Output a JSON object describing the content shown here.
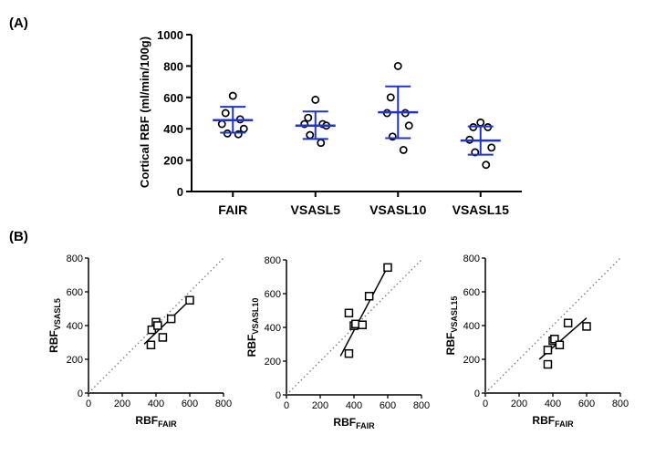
{
  "chart_data": [
    {
      "panel": "(A)",
      "type": "scatter",
      "ylabel": "Cortical RBF (ml/min/100g)",
      "ylim": [
        0,
        1000
      ],
      "yticks": [
        0,
        200,
        400,
        600,
        800,
        1000
      ],
      "categories": [
        "FAIR",
        "VSASL5",
        "VSASL10",
        "VSASL15"
      ],
      "groups": [
        {
          "name": "FAIR",
          "points": [
            610,
            500,
            460,
            430,
            400,
            370,
            365
          ],
          "mean": 455,
          "sd_low": 375,
          "sd_high": 540
        },
        {
          "name": "VSASL5",
          "points": [
            585,
            470,
            430,
            430,
            420,
            360,
            310
          ],
          "mean": 420,
          "sd_low": 335,
          "sd_high": 510
        },
        {
          "name": "VSASL10",
          "points": [
            800,
            600,
            500,
            500,
            420,
            350,
            265
          ],
          "mean": 505,
          "sd_low": 340,
          "sd_high": 670
        },
        {
          "name": "VSASL15",
          "points": [
            440,
            410,
            410,
            330,
            280,
            250,
            170
          ],
          "mean": 325,
          "sd_low": 235,
          "sd_high": 415
        }
      ],
      "colors": {
        "bar": "#1f35c8",
        "marker": "#000000"
      }
    },
    {
      "panel": "(B)",
      "type": "scatter",
      "xlabel": "RBF",
      "xlabel_sub": "FAIR",
      "ylabel": "RBF",
      "ylabel_sub": "VSASL5",
      "xlim": [
        0,
        800
      ],
      "ylim": [
        0,
        800
      ],
      "xticks": [
        0,
        200,
        400,
        600,
        800
      ],
      "yticks": [
        0,
        200,
        400,
        600,
        800
      ],
      "x": [
        370,
        375,
        400,
        410,
        440,
        490,
        600
      ],
      "y": [
        285,
        375,
        420,
        400,
        330,
        440,
        550
      ],
      "fit": {
        "x": [
          330,
          600
        ],
        "y": [
          290,
          550
        ]
      }
    },
    {
      "type": "scatter",
      "xlabel": "RBF",
      "xlabel_sub": "FAIR",
      "ylabel": "RBF",
      "ylabel_sub": "VSASL10",
      "xlim": [
        0,
        800
      ],
      "ylim": [
        0,
        800
      ],
      "xticks": [
        0,
        200,
        400,
        600,
        800
      ],
      "yticks": [
        0,
        200,
        400,
        600,
        800
      ],
      "x": [
        370,
        370,
        400,
        410,
        450,
        490,
        600
      ],
      "y": [
        245,
        485,
        410,
        420,
        415,
        585,
        755
      ],
      "fit": {
        "x": [
          320,
          600
        ],
        "y": [
          230,
          760
        ]
      }
    },
    {
      "type": "scatter",
      "xlabel": "RBF",
      "xlabel_sub": "FAIR",
      "ylabel": "RBF",
      "ylabel_sub": "VSASL15",
      "xlim": [
        0,
        800
      ],
      "ylim": [
        0,
        800
      ],
      "xticks": [
        0,
        200,
        400,
        600,
        800
      ],
      "yticks": [
        0,
        200,
        400,
        600,
        800
      ],
      "x": [
        370,
        370,
        400,
        410,
        440,
        490,
        600
      ],
      "y": [
        170,
        255,
        310,
        320,
        285,
        415,
        395
      ],
      "fit": {
        "x": [
          320,
          600
        ],
        "y": [
          200,
          445
        ]
      }
    }
  ]
}
